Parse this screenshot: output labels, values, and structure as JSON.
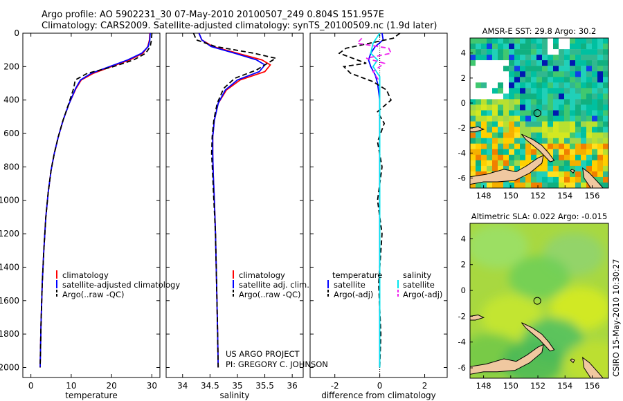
{
  "header": {
    "line1": "Argo profile: AO 5902231_30 07-May-2010 20100507_249 0.804S 151.957E",
    "line2": "Climatology: CARS2009. Satellite-adjusted climatology: synTS_20100509.nc (1.9d later)"
  },
  "colors": {
    "clim": "#ff0000",
    "sat": "#0000ff",
    "argo": "#000000",
    "cyan": "#00e5ee",
    "magenta": "#ee22ee",
    "land": "#f0c8a0"
  },
  "chart_data": [
    {
      "type": "line",
      "name": "temperature-profile",
      "xlabel": "temperature",
      "xlim": [
        -2,
        32
      ],
      "ylim": [
        2060,
        0
      ],
      "xticks": [
        "0",
        "10",
        "20",
        "30"
      ],
      "xtick_values": [
        0,
        10,
        20,
        30
      ],
      "yticks": [
        "0",
        "200",
        "400",
        "600",
        "800",
        "1000",
        "1200",
        "1400",
        "1600",
        "1800",
        "2000"
      ],
      "ytick_values": [
        0,
        200,
        400,
        600,
        800,
        1000,
        1200,
        1400,
        1600,
        1800,
        2000
      ],
      "series": [
        {
          "name": "climatology",
          "color": "#ff0000",
          "dash": "",
          "x": [
            29.5,
            29.4,
            29.0,
            27.8,
            24.5,
            20.0,
            15.5,
            12.5,
            11.2,
            9.5,
            8.0,
            6.8,
            5.8,
            5.0,
            4.3,
            3.7,
            3.2,
            2.8,
            2.5,
            2.3
          ],
          "y": [
            0,
            40,
            80,
            120,
            160,
            200,
            240,
            280,
            330,
            420,
            520,
            620,
            720,
            820,
            950,
            1100,
            1300,
            1500,
            1750,
            2000
          ]
        },
        {
          "name": "satellite-adjusted climatology",
          "color": "#0000ff",
          "dash": "",
          "x": [
            29.6,
            29.5,
            29.1,
            27.5,
            24.0,
            19.5,
            15.0,
            12.3,
            11.1,
            9.5,
            8.0,
            6.8,
            5.8,
            5.0,
            4.3,
            3.7,
            3.2,
            2.8,
            2.5,
            2.3
          ],
          "y": [
            0,
            40,
            80,
            120,
            160,
            200,
            240,
            280,
            330,
            420,
            520,
            620,
            720,
            820,
            950,
            1100,
            1300,
            1500,
            1750,
            2000
          ]
        },
        {
          "name": "Argo(..raw -QC)",
          "color": "#000000",
          "dash": "7,4",
          "x": [
            30.0,
            29.9,
            29.6,
            28.5,
            25.5,
            20.5,
            14.0,
            11.0,
            10.6,
            9.4,
            8.0,
            6.8,
            5.8,
            5.0,
            4.3,
            3.7,
            3.2,
            2.8,
            2.5,
            2.3
          ],
          "y": [
            0,
            40,
            80,
            120,
            160,
            200,
            240,
            280,
            330,
            420,
            520,
            620,
            720,
            820,
            950,
            1100,
            1300,
            1500,
            1750,
            2000
          ]
        }
      ],
      "legend": [
        "climatology",
        "satellite-adjusted climatology",
        "Argo(..raw -QC)"
      ]
    },
    {
      "type": "line",
      "name": "salinity-profile",
      "xlabel": "salinity",
      "xlim": [
        33.7,
        36.2
      ],
      "ylim": [
        2060,
        0
      ],
      "xticks": [
        "34",
        "34.5",
        "35",
        "35.5",
        "36"
      ],
      "xtick_values": [
        34,
        34.5,
        35,
        35.5,
        36
      ],
      "series": [
        {
          "name": "climatology",
          "color": "#ff0000",
          "dash": "",
          "x": [
            34.3,
            34.35,
            34.55,
            35.0,
            35.45,
            35.6,
            35.5,
            35.05,
            34.8,
            34.65,
            34.58,
            34.55,
            34.55,
            34.56,
            34.58,
            34.6,
            34.62,
            34.64,
            34.65
          ],
          "y": [
            0,
            40,
            80,
            120,
            160,
            190,
            230,
            280,
            340,
            420,
            520,
            620,
            720,
            850,
            1000,
            1200,
            1500,
            1800,
            2000
          ]
        },
        {
          "name": "satellite adj. clim.",
          "color": "#0000ff",
          "dash": "",
          "x": [
            34.3,
            34.35,
            34.52,
            34.95,
            35.35,
            35.5,
            35.4,
            35.0,
            34.78,
            34.65,
            34.58,
            34.55,
            34.55,
            34.56,
            34.58,
            34.6,
            34.62,
            34.64,
            34.65
          ],
          "y": [
            0,
            40,
            80,
            120,
            160,
            190,
            230,
            280,
            340,
            420,
            520,
            620,
            720,
            850,
            1000,
            1200,
            1500,
            1800,
            2000
          ]
        },
        {
          "name": "Argo(..raw -QC)",
          "color": "#000000",
          "dash": "7,4",
          "x": [
            34.2,
            34.25,
            34.6,
            35.3,
            35.7,
            35.55,
            35.35,
            34.95,
            34.75,
            34.63,
            34.57,
            34.54,
            34.53,
            34.55,
            34.57,
            34.6,
            34.62,
            34.64,
            34.65
          ],
          "y": [
            0,
            40,
            80,
            120,
            150,
            180,
            220,
            270,
            330,
            420,
            520,
            620,
            720,
            850,
            1000,
            1200,
            1500,
            1800,
            2000
          ]
        }
      ],
      "legend": [
        "climatology",
        "satellite adj. clim.",
        "Argo(..raw -QC)"
      ]
    },
    {
      "type": "line",
      "name": "difference-from-climatology",
      "xlabel": "difference from climatology",
      "xlim": [
        -3.1,
        3.0
      ],
      "ylim": [
        2060,
        0
      ],
      "xticks": [
        "-2",
        "0",
        "2"
      ],
      "xtick_values": [
        -2,
        0,
        2
      ],
      "series": [
        {
          "name": "temperature satellite",
          "color": "#0000ff",
          "dash": "",
          "x": [
            0.1,
            0.15,
            -0.2,
            -0.4,
            -0.5,
            -0.4,
            -0.2,
            -0.1,
            0.0,
            0.0,
            0.0,
            0.0,
            0.0
          ],
          "y": [
            0,
            40,
            80,
            120,
            160,
            200,
            250,
            300,
            400,
            600,
            1000,
            1500,
            2000
          ]
        },
        {
          "name": "temperature Argo(-adj)",
          "color": "#000000",
          "dash": "7,4",
          "x": [
            0.9,
            0.6,
            -1.5,
            -1.8,
            -1.2,
            -0.6,
            -1.6,
            -1.3,
            -0.3,
            0.3,
            0.5,
            -0.1,
            0.2,
            -0.1,
            0.1,
            -0.1,
            0.1,
            -0.05,
            0.05,
            0.0
          ],
          "y": [
            0,
            30,
            90,
            120,
            150,
            180,
            200,
            240,
            290,
            340,
            400,
            470,
            540,
            650,
            800,
            1000,
            1200,
            1500,
            1800,
            2000
          ]
        },
        {
          "name": "salinity satellite",
          "color": "#00e5ee",
          "dash": "",
          "x": [
            0.0,
            -0.3,
            -0.4,
            -0.1,
            -0.3,
            0.0,
            0.0,
            0.0,
            0.0
          ],
          "y": [
            0,
            60,
            120,
            160,
            200,
            260,
            400,
            1000,
            2000
          ]
        },
        {
          "name": "salinity Argo(-adj)",
          "color": "#ee22ee",
          "dash": "7,4",
          "x": [
            -0.8,
            -1.0,
            0.4,
            0.5,
            -0.6,
            0.2,
            -0.3,
            0.0
          ],
          "y": [
            30,
            60,
            90,
            120,
            150,
            180,
            230,
            290
          ]
        }
      ],
      "legend_groups": {
        "temperature": {
          "title": "temperature",
          "items": [
            "satellite",
            "Argo(-adj)"
          ]
        },
        "salinity": {
          "title": "salinity",
          "items": [
            "satellite",
            "Argo(-adj)"
          ]
        }
      }
    },
    {
      "type": "heatmap",
      "name": "sst-map",
      "title": "AMSR-E SST: 29.8 Argo: 30.2",
      "xlim": [
        147.0,
        157.2
      ],
      "ylim": [
        -6.8,
        5.2
      ],
      "xticks": [
        "148",
        "150",
        "152",
        "154",
        "156"
      ],
      "xtick_values": [
        148,
        150,
        152,
        154,
        156
      ],
      "yticks": [
        "4",
        "2",
        "0",
        "-2",
        "-4",
        "-6"
      ],
      "ytick_values": [
        4,
        2,
        0,
        -2,
        -4,
        -6
      ],
      "marker": {
        "lon": 151.957,
        "lat": -0.804
      }
    },
    {
      "type": "heatmap",
      "name": "sla-map",
      "title": "Altimetric SLA: 0.022 Argo: -0.015",
      "xlim": [
        147.0,
        157.2
      ],
      "ylim": [
        -6.8,
        5.2
      ],
      "xticks": [
        "148",
        "150",
        "152",
        "154",
        "156"
      ],
      "xtick_values": [
        148,
        150,
        152,
        154,
        156
      ],
      "yticks": [
        "4",
        "2",
        "0",
        "-2",
        "-4",
        "-6"
      ],
      "ytick_values": [
        4,
        2,
        0,
        -2,
        -4,
        -6
      ],
      "marker": {
        "lon": 151.957,
        "lat": -0.804
      }
    }
  ],
  "annotations": {
    "project": "US ARGO PROJECT",
    "pi": "PI: GREGORY C. JOHNSON",
    "stamp": "CSIRO 15-May-2010 10:30:27"
  }
}
